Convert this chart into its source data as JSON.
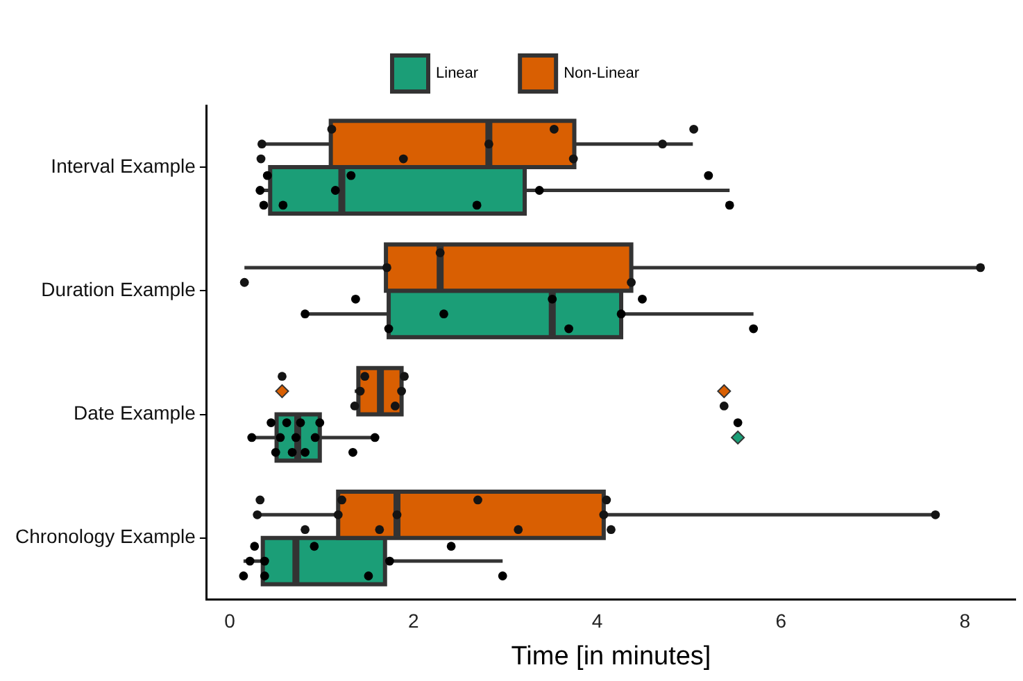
{
  "chart_data": {
    "type": "box",
    "orientation": "horizontal",
    "xlabel": "Time [in minutes]",
    "categories": [
      "Interval Example",
      "Duration Example",
      "Date Example",
      "Chronology Example"
    ],
    "xlim": [
      -0.25,
      8.55
    ],
    "xticks": [
      0,
      2,
      4,
      6,
      8
    ],
    "grid": false,
    "legend": "top",
    "series": [
      {
        "name": "Linear",
        "color": "#1b9e77",
        "boxes": [
          {
            "low": 0.33,
            "q1": 0.44,
            "median": 1.22,
            "q3": 3.21,
            "high": 5.44
          },
          {
            "low": 0.82,
            "q1": 1.73,
            "median": 3.51,
            "q3": 4.26,
            "high": 5.7
          },
          {
            "low": 0.24,
            "q1": 0.51,
            "median": 0.74,
            "q3": 0.98,
            "high": 1.58,
            "outliers": [
              5.53
            ]
          },
          {
            "low": 0.15,
            "q1": 0.36,
            "median": 0.72,
            "q3": 1.69,
            "high": 2.97
          }
        ]
      },
      {
        "name": "Non-Linear",
        "color": "#d95f02",
        "boxes": [
          {
            "low": 0.34,
            "q1": 1.1,
            "median": 2.82,
            "q3": 3.75,
            "high": 5.04
          },
          {
            "low": 0.16,
            "q1": 1.7,
            "median": 2.29,
            "q3": 4.37,
            "high": 8.17
          },
          {
            "low": 1.36,
            "q1": 1.4,
            "median": 1.64,
            "q3": 1.87,
            "high": 1.9,
            "outliers": [
              0.57,
              5.38
            ]
          },
          {
            "low": 0.33,
            "q1": 1.18,
            "median": 1.82,
            "q3": 4.07,
            "high": 7.68
          }
        ]
      },
      {
        "type": "scatter",
        "color": "#000000",
        "x": [
          "Interval Example",
          "Interval Example",
          "Interval Example",
          "Interval Example",
          "Interval Example",
          "Interval Example",
          "Interval Example",
          "Interval Example",
          "Interval Example",
          "Interval Example",
          "Duration Example",
          "Duration Example",
          "Duration Example",
          "Duration Example",
          "Duration Example",
          "Duration Example",
          "Duration Example",
          "Duration Example",
          "Duration Example",
          "Date Example",
          "Date Example",
          "Date Example",
          "Date Example",
          "Date Example",
          "Date Example",
          "Date Example",
          "Date Example",
          "Date Example",
          "Date Example",
          "Date Example",
          "Date Example",
          "Date Example",
          "Date Example",
          "Chronology Example",
          "Chronology Example",
          "Chronology Example",
          "Chronology Example",
          "Chronology Example",
          "Chronology Example",
          "Chronology Example",
          "Chronology Example",
          "Chronology Example",
          "Chronology Example"
        ],
        "values": [
          0.37,
          0.33,
          0.41,
          0.58,
          1.15,
          1.32,
          2.69,
          3.37,
          5.21,
          5.44,
          0.82,
          1.37,
          1.73,
          2.33,
          3.51,
          3.69,
          4.26,
          4.49,
          5.7,
          0.24,
          0.45,
          0.5,
          0.55,
          0.62,
          0.68,
          0.72,
          0.77,
          0.82,
          0.93,
          0.98,
          1.34,
          1.58,
          5.53,
          0.15,
          0.22,
          0.27,
          0.38,
          0.38,
          0.92,
          1.51,
          1.74,
          2.41,
          2.97
        ]
      },
      {
        "type": "scatter",
        "color": "#141414",
        "x": [
          "Interval Example",
          "Interval Example",
          "Interval Example",
          "Interval Example",
          "Interval Example",
          "Interval Example",
          "Interval Example",
          "Interval Example",
          "Interval Example",
          "Duration Example",
          "Duration Example",
          "Duration Example",
          "Duration Example",
          "Duration Example",
          "Date Example",
          "Date Example",
          "Date Example",
          "Date Example",
          "Date Example",
          "Date Example",
          "Date Example",
          "Date Example",
          "Chronology Example",
          "Chronology Example",
          "Chronology Example",
          "Chronology Example",
          "Chronology Example",
          "Chronology Example",
          "Chronology Example",
          "Chronology Example",
          "Chronology Example",
          "Chronology Example",
          "Chronology Example",
          "Chronology Example",
          "Chronology Example"
        ],
        "values": [
          0.34,
          0.35,
          1.11,
          1.89,
          2.82,
          3.53,
          3.74,
          4.71,
          5.05,
          0.16,
          1.71,
          2.29,
          4.37,
          8.17,
          0.57,
          1.36,
          1.42,
          1.47,
          1.8,
          1.87,
          1.9,
          5.38,
          0.3,
          0.33,
          0.82,
          1.18,
          1.22,
          1.63,
          1.82,
          2.7,
          3.14,
          4.07,
          4.1,
          4.15,
          7.68
        ]
      }
    ]
  }
}
